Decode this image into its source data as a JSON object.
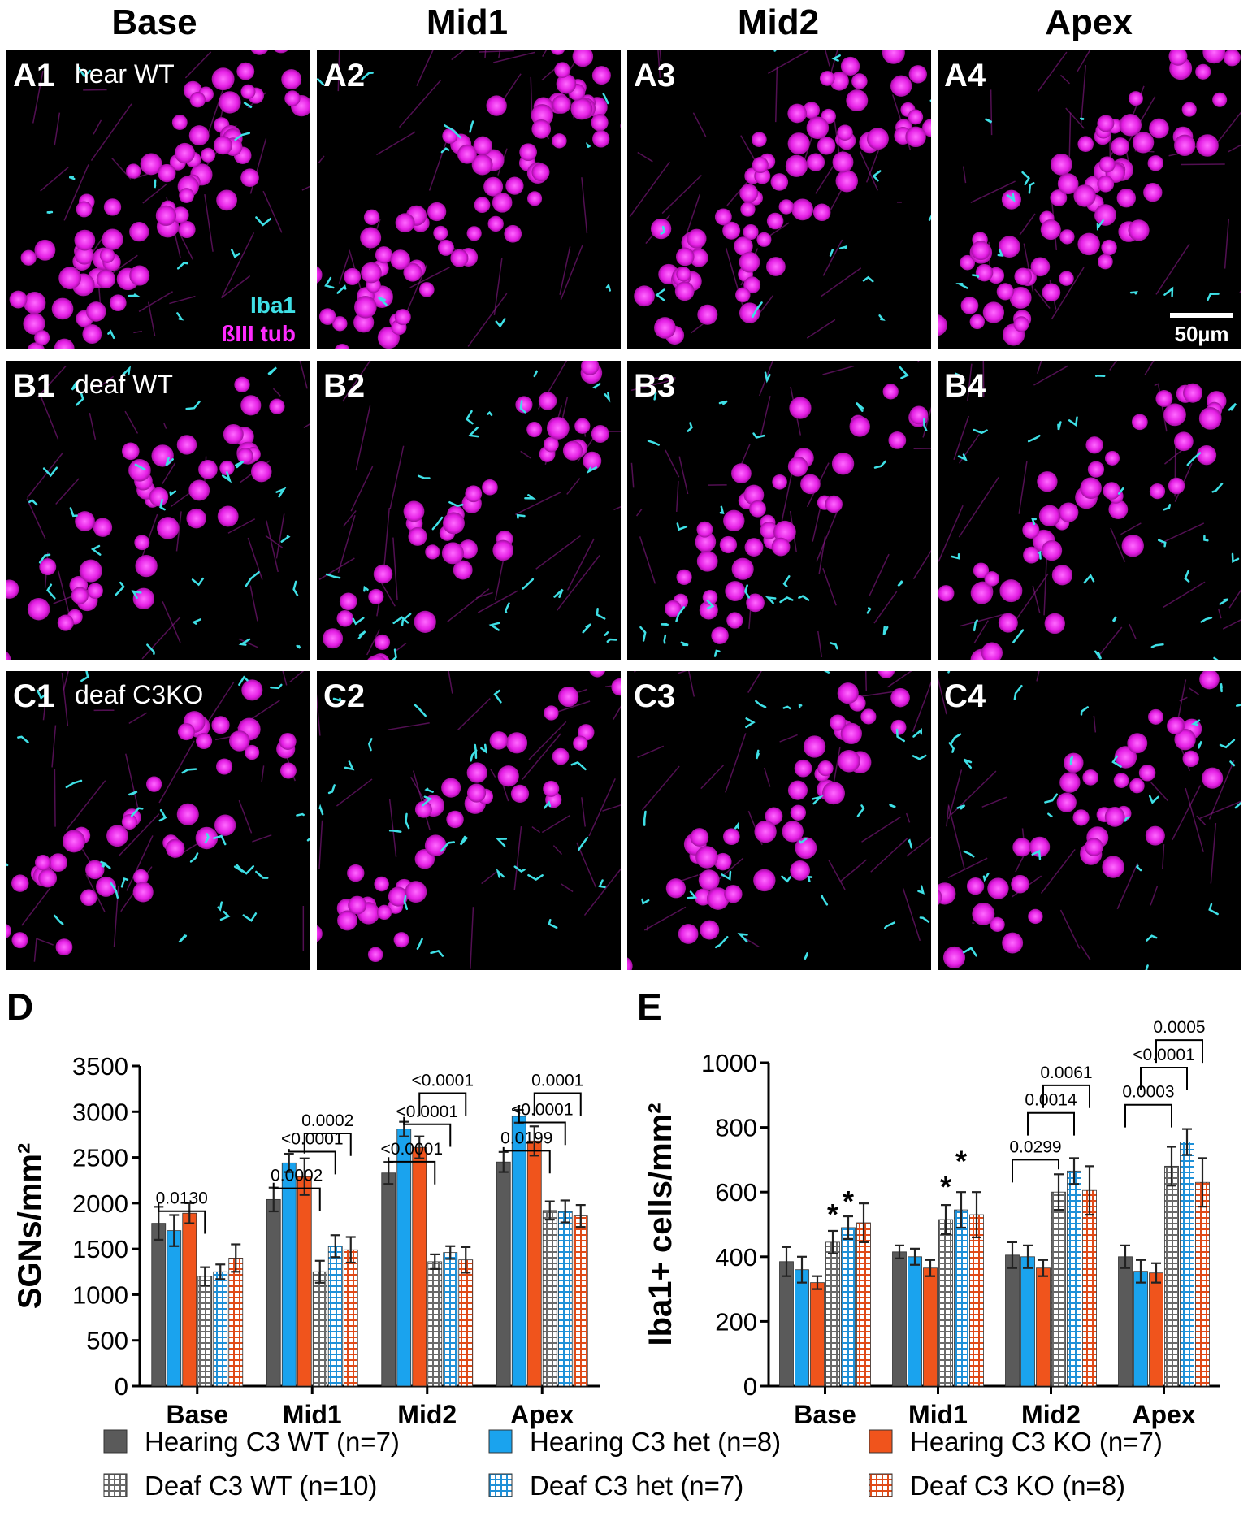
{
  "column_headers": [
    "Base",
    "Mid1",
    "Mid2",
    "Apex"
  ],
  "panels": [
    {
      "label": "A1",
      "sub": "hear WT"
    },
    {
      "label": "A2",
      "sub": ""
    },
    {
      "label": "A3",
      "sub": ""
    },
    {
      "label": "A4",
      "sub": ""
    },
    {
      "label": "B1",
      "sub": "deaf WT"
    },
    {
      "label": "B2",
      "sub": ""
    },
    {
      "label": "B3",
      "sub": ""
    },
    {
      "label": "B4",
      "sub": ""
    },
    {
      "label": "C1",
      "sub": "deaf C3KO"
    },
    {
      "label": "C2",
      "sub": ""
    },
    {
      "label": "C3",
      "sub": ""
    },
    {
      "label": "C4",
      "sub": ""
    }
  ],
  "stain_labels": {
    "iba1": "Iba1",
    "tub": "ßIII tub"
  },
  "scale_bar": "50µm",
  "colors": {
    "iba1": "#3fe0e6",
    "tub": "#ff2bff",
    "hear_wt": "#5a5a5a",
    "hear_het": "#1aa3ee",
    "hear_ko": "#f0541c",
    "deaf_wt": "#6a6a6a",
    "deaf_het": "#1e90d8",
    "deaf_ko": "#e04a18"
  },
  "legend": [
    {
      "label": "Hearing C3 WT (n=7)",
      "color": "#5a5a5a",
      "hatch": false
    },
    {
      "label": "Hearing C3 het (n=8)",
      "color": "#1aa3ee",
      "hatch": false
    },
    {
      "label": "Hearing C3 KO (n=7)",
      "color": "#f0541c",
      "hatch": false
    },
    {
      "label": "Deaf C3 WT (n=10)",
      "color": "#6a6a6a",
      "hatch": true
    },
    {
      "label": "Deaf C3 het (n=7)",
      "color": "#1e90d8",
      "hatch": true
    },
    {
      "label": "Deaf C3 KO (n=8)",
      "color": "#e04a18",
      "hatch": true
    }
  ],
  "chart_data": [
    {
      "panel": "D",
      "type": "bar",
      "categories": [
        "Base",
        "Mid1",
        "Mid2",
        "Apex"
      ],
      "ylabel": "SGNs/mm²",
      "ylim": [
        0,
        3500
      ],
      "yticks": [
        0,
        500,
        1000,
        1500,
        2000,
        2500,
        3000,
        3500
      ],
      "series": [
        {
          "name": "Hearing C3 WT (n=7)",
          "values": [
            1780,
            2040,
            2330,
            2450
          ],
          "err": [
            180,
            130,
            120,
            110
          ]
        },
        {
          "name": "Hearing C3 het (n=8)",
          "values": [
            1700,
            2440,
            2810,
            2950
          ],
          "err": [
            170,
            100,
            80,
            70
          ]
        },
        {
          "name": "Hearing C3 KO (n=7)",
          "values": [
            1890,
            2290,
            2610,
            2680
          ],
          "err": [
            110,
            200,
            120,
            160
          ]
        },
        {
          "name": "Deaf C3 WT (n=10)",
          "values": [
            1200,
            1250,
            1360,
            1920
          ],
          "err": [
            100,
            120,
            80,
            100
          ]
        },
        {
          "name": "Deaf C3 het (n=7)",
          "values": [
            1250,
            1530,
            1460,
            1910
          ],
          "err": [
            80,
            120,
            70,
            120
          ]
        },
        {
          "name": "Deaf C3 KO (n=8)",
          "values": [
            1400,
            1490,
            1380,
            1860
          ],
          "err": [
            150,
            140,
            140,
            120
          ]
        }
      ],
      "annotations": [
        {
          "cat": 0,
          "from": 0,
          "to": 3,
          "y": 1790,
          "text": "0.0130"
        },
        {
          "cat": 1,
          "from": 0,
          "to": 3,
          "y": 2040,
          "text": "0.0002"
        },
        {
          "cat": 1,
          "from": 1,
          "to": 4,
          "y": 2440,
          "text": "<0.0001"
        },
        {
          "cat": 1,
          "from": 2,
          "to": 5,
          "y": 2640,
          "text": "0.0002"
        },
        {
          "cat": 2,
          "from": 0,
          "to": 3,
          "y": 2330,
          "text": "<0.0001"
        },
        {
          "cat": 2,
          "from": 1,
          "to": 4,
          "y": 2740,
          "text": "<0.0001"
        },
        {
          "cat": 2,
          "from": 2,
          "to": 5,
          "y": 3080,
          "text": "<0.0001"
        },
        {
          "cat": 3,
          "from": 0,
          "to": 3,
          "y": 2450,
          "text": "0.0199"
        },
        {
          "cat": 3,
          "from": 1,
          "to": 4,
          "y": 2760,
          "text": "<0.0001"
        },
        {
          "cat": 3,
          "from": 2,
          "to": 5,
          "y": 3080,
          "text": "0.0001"
        }
      ]
    },
    {
      "panel": "E",
      "type": "bar",
      "categories": [
        "Base",
        "Mid1",
        "Mid2",
        "Apex"
      ],
      "ylabel": "Iba1+ cells/mm²",
      "ylim": [
        0,
        1000
      ],
      "yticks": [
        0,
        200,
        400,
        600,
        800,
        1000
      ],
      "series": [
        {
          "name": "Hearing C3 WT (n=7)",
          "values": [
            385,
            415,
            405,
            400
          ],
          "err": [
            45,
            20,
            40,
            35
          ]
        },
        {
          "name": "Hearing C3 het (n=8)",
          "values": [
            360,
            400,
            400,
            355
          ],
          "err": [
            40,
            25,
            35,
            35
          ]
        },
        {
          "name": "Hearing C3 KO (n=7)",
          "values": [
            320,
            365,
            365,
            350
          ],
          "err": [
            20,
            25,
            25,
            30
          ]
        },
        {
          "name": "Deaf C3 WT (n=10)",
          "values": [
            445,
            515,
            600,
            680
          ],
          "err": [
            35,
            45,
            55,
            60
          ]
        },
        {
          "name": "Deaf C3 het (n=7)",
          "values": [
            490,
            545,
            665,
            755
          ],
          "err": [
            35,
            55,
            40,
            40
          ]
        },
        {
          "name": "Deaf C3 KO (n=8)",
          "values": [
            505,
            530,
            605,
            630
          ],
          "err": [
            60,
            70,
            75,
            75
          ]
        }
      ],
      "stars": [
        {
          "cat": 0,
          "bar": 3,
          "y": 535
        },
        {
          "cat": 0,
          "bar": 4,
          "y": 575
        },
        {
          "cat": 1,
          "bar": 3,
          "y": 620
        },
        {
          "cat": 1,
          "bar": 4,
          "y": 700
        }
      ],
      "annotations": [
        {
          "cat": 2,
          "from": 0,
          "to": 3,
          "y": 665,
          "text": "0.0299"
        },
        {
          "cat": 2,
          "from": 1,
          "to": 4,
          "y": 810,
          "text": "0.0014"
        },
        {
          "cat": 2,
          "from": 2,
          "to": 5,
          "y": 895,
          "text": "0.0061"
        },
        {
          "cat": 3,
          "from": 0,
          "to": 3,
          "y": 835,
          "text": "0.0003"
        },
        {
          "cat": 3,
          "from": 1,
          "to": 4,
          "y": 950,
          "text": "<0.0001"
        },
        {
          "cat": 3,
          "from": 2,
          "to": 5,
          "y": 1035,
          "text": "0.0005"
        }
      ]
    }
  ],
  "panel_letters": {
    "d": "D",
    "e": "E"
  }
}
